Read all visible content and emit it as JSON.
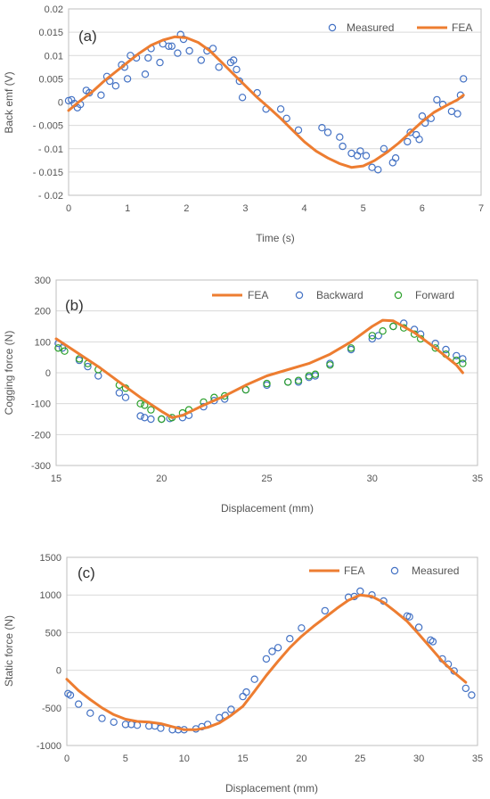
{
  "chart_data": [
    {
      "type": "scatter",
      "panel_label": "(a)",
      "xlabel": "Time (s)",
      "ylabel": "Back emf (V)",
      "xlim": [
        0,
        7
      ],
      "ylim": [
        -0.02,
        0.02
      ],
      "xticks": [
        0,
        1,
        2,
        3,
        4,
        5,
        6,
        7
      ],
      "yticks": [
        -0.02,
        -0.015,
        -0.01,
        -0.005,
        0,
        0.005,
        0.01,
        0.015,
        0.02
      ],
      "ytick_labels": [
        "- 0.02",
        "- 0.015",
        "- 0.01",
        "- 0.005",
        "0",
        "0.005",
        "0.01",
        "0.015",
        "0.02"
      ],
      "grid": "horizontal",
      "legend_position": "top-right",
      "series": [
        {
          "name": "Measured",
          "kind": "markers",
          "color": "#4472c4",
          "x": [
            0,
            0.05,
            0.1,
            0.15,
            0.2,
            0.3,
            0.35,
            0.55,
            0.65,
            0.7,
            0.8,
            0.9,
            0.95,
            1.0,
            1.05,
            1.15,
            1.3,
            1.35,
            1.4,
            1.55,
            1.6,
            1.7,
            1.75,
            1.85,
            1.9,
            1.95,
            2.05,
            2.25,
            2.35,
            2.45,
            2.55,
            2.75,
            2.8,
            2.85,
            2.9,
            2.95,
            3.2,
            3.35,
            3.6,
            3.7,
            3.9,
            4.3,
            4.4,
            4.6,
            4.65,
            4.8,
            4.9,
            4.95,
            5.05,
            5.15,
            5.25,
            5.35,
            5.5,
            5.55,
            5.75,
            5.8,
            5.9,
            5.95,
            6.0,
            6.05,
            6.15,
            6.25,
            6.35,
            6.5,
            6.6,
            6.65,
            6.7
          ],
          "y": [
            0.0003,
            0.0005,
            -0.0003,
            -0.0012,
            -0.0005,
            0.0025,
            0.002,
            0.0015,
            0.0055,
            0.0045,
            0.0035,
            0.008,
            0.0075,
            0.005,
            0.01,
            0.0095,
            0.006,
            0.0095,
            0.0115,
            0.0085,
            0.0125,
            0.012,
            0.012,
            0.0105,
            0.0145,
            0.0135,
            0.011,
            0.009,
            0.011,
            0.0115,
            0.0075,
            0.0085,
            0.009,
            0.007,
            0.0045,
            0.001,
            0.002,
            -0.0015,
            -0.0015,
            -0.0035,
            -0.006,
            -0.0055,
            -0.0065,
            -0.0075,
            -0.0095,
            -0.011,
            -0.0115,
            -0.0105,
            -0.0115,
            -0.014,
            -0.0145,
            -0.01,
            -0.013,
            -0.012,
            -0.0085,
            -0.0065,
            -0.007,
            -0.008,
            -0.003,
            -0.0045,
            -0.0035,
            0.0005,
            -0.0005,
            -0.002,
            -0.0025,
            0.0015,
            0.005
          ]
        },
        {
          "name": "FEA",
          "kind": "line",
          "color": "#ed7d31",
          "x": [
            0,
            0.2,
            0.4,
            0.6,
            0.8,
            1.0,
            1.2,
            1.4,
            1.6,
            1.8,
            2.0,
            2.2,
            2.4,
            2.6,
            2.8,
            3.0,
            3.2,
            3.4,
            3.6,
            3.8,
            4.0,
            4.2,
            4.4,
            4.6,
            4.8,
            5.0,
            5.2,
            5.4,
            5.6,
            5.8,
            6.0,
            6.2,
            6.4,
            6.6,
            6.7
          ],
          "y": [
            -0.0018,
            0.0003,
            0.0022,
            0.0045,
            0.0065,
            0.0085,
            0.0105,
            0.0122,
            0.0133,
            0.014,
            0.0138,
            0.0128,
            0.011,
            0.0085,
            0.006,
            0.0035,
            0.001,
            -0.0012,
            -0.0035,
            -0.006,
            -0.0085,
            -0.0105,
            -0.012,
            -0.0132,
            -0.014,
            -0.0137,
            -0.0125,
            -0.0108,
            -0.0088,
            -0.0065,
            -0.0042,
            -0.0022,
            -0.0008,
            0.0005,
            0.0015
          ]
        }
      ]
    },
    {
      "type": "scatter",
      "panel_label": "(b)",
      "xlabel": "Displacement (mm)",
      "ylabel": "Cogging force (N)",
      "xlim": [
        15,
        35
      ],
      "ylim": [
        -300,
        300
      ],
      "xticks": [
        15,
        20,
        25,
        30,
        35
      ],
      "yticks": [
        -300,
        -200,
        -100,
        0,
        100,
        200,
        300
      ],
      "ytick_labels": [
        "-300",
        "-200",
        "-100",
        "0",
        "100",
        "200",
        "300"
      ],
      "grid": "horizontal",
      "legend_position": "top-right",
      "series": [
        {
          "name": "FEA",
          "kind": "line",
          "color": "#ed7d31",
          "x": [
            15,
            16,
            17,
            18,
            19,
            20,
            20.5,
            21,
            22,
            23,
            24,
            25,
            26,
            27,
            28,
            29,
            30,
            30.5,
            31,
            32,
            33,
            34,
            34.3
          ],
          "y": [
            110,
            65,
            20,
            -30,
            -80,
            -125,
            -145,
            -138,
            -105,
            -75,
            -40,
            -10,
            10,
            30,
            60,
            100,
            150,
            170,
            168,
            130,
            80,
            25,
            0
          ]
        },
        {
          "name": "Backward",
          "kind": "markers",
          "color": "#4472c4",
          "x": [
            15.1,
            15.3,
            16.1,
            16.5,
            17.0,
            18.0,
            18.3,
            19.0,
            19.2,
            19.5,
            20.0,
            20.4,
            21.0,
            21.3,
            22.0,
            22.5,
            23.0,
            24.0,
            25.0,
            26.0,
            26.5,
            27.0,
            27.3,
            28.0,
            29.0,
            30.0,
            30.3,
            31.0,
            31.5,
            32.0,
            32.3,
            33.0,
            33.5,
            34.0,
            34.3
          ],
          "y": [
            95,
            80,
            40,
            20,
            -10,
            -65,
            -80,
            -140,
            -145,
            -150,
            -150,
            -148,
            -145,
            -138,
            -110,
            -90,
            -85,
            -55,
            -40,
            -30,
            -30,
            -15,
            -10,
            30,
            75,
            110,
            120,
            150,
            160,
            140,
            125,
            95,
            75,
            55,
            45
          ]
        },
        {
          "name": "Forward",
          "kind": "markers",
          "color": "#2ca02c",
          "x": [
            15.1,
            15.4,
            16.1,
            16.5,
            17.0,
            18.0,
            18.3,
            19.0,
            19.2,
            19.5,
            20.0,
            20.5,
            21.0,
            21.3,
            22.0,
            22.5,
            23.0,
            24.0,
            25.0,
            26.0,
            26.5,
            27.0,
            27.3,
            28.0,
            29.0,
            30.0,
            30.5,
            31.0,
            31.5,
            32.0,
            32.3,
            33.0,
            33.5,
            34.0,
            34.3
          ],
          "y": [
            80,
            70,
            45,
            30,
            10,
            -40,
            -50,
            -100,
            -105,
            -120,
            -150,
            -145,
            -130,
            -120,
            -95,
            -80,
            -75,
            -55,
            -35,
            -30,
            -25,
            -10,
            -5,
            25,
            80,
            120,
            135,
            150,
            145,
            125,
            110,
            80,
            60,
            40,
            30
          ]
        }
      ]
    },
    {
      "type": "scatter",
      "panel_label": "(c)",
      "xlabel": "Displacement (mm)",
      "ylabel": "Static force (N)",
      "xlim": [
        0,
        35
      ],
      "ylim": [
        -1000,
        1500
      ],
      "xticks": [
        0,
        5,
        10,
        15,
        20,
        25,
        30,
        35
      ],
      "yticks": [
        -1000,
        -500,
        0,
        500,
        1000,
        1500
      ],
      "ytick_labels": [
        "-1000",
        "-500",
        "0",
        "500",
        "1000",
        "1500"
      ],
      "grid": "horizontal",
      "legend_position": "top-right",
      "series": [
        {
          "name": "FEA",
          "kind": "line",
          "color": "#ed7d31",
          "x": [
            0,
            1,
            2,
            3,
            4,
            5,
            6,
            7,
            8,
            9,
            10,
            11,
            12,
            13,
            14,
            15,
            16,
            17,
            18,
            19,
            20,
            21,
            22,
            23,
            24,
            25,
            26,
            27,
            28,
            29,
            30,
            31,
            32,
            33,
            34
          ],
          "y": [
            -120,
            -270,
            -390,
            -500,
            -590,
            -650,
            -680,
            -690,
            -710,
            -750,
            -790,
            -790,
            -760,
            -700,
            -600,
            -480,
            -280,
            -70,
            120,
            300,
            450,
            580,
            700,
            820,
            930,
            1000,
            980,
            900,
            780,
            650,
            480,
            300,
            120,
            -30,
            -160
          ]
        },
        {
          "name": "Measured",
          "kind": "markers",
          "color": "#4472c4",
          "x": [
            0.1,
            0.3,
            1.0,
            2.0,
            3.0,
            4.0,
            5.0,
            5.5,
            6.0,
            7.0,
            7.5,
            8.0,
            9.0,
            9.5,
            10.0,
            11.0,
            11.5,
            12.0,
            13.0,
            13.5,
            14.0,
            15.0,
            15.3,
            16.0,
            17.0,
            17.5,
            18.0,
            19.0,
            20.0,
            22.0,
            24.0,
            24.5,
            25.0,
            26.0,
            27.0,
            29.0,
            29.2,
            30.0,
            31.0,
            31.2,
            32.0,
            32.5,
            33.0,
            34.0,
            34.5
          ],
          "y": [
            -310,
            -330,
            -450,
            -570,
            -640,
            -690,
            -720,
            -720,
            -730,
            -740,
            -740,
            -770,
            -790,
            -790,
            -790,
            -780,
            -750,
            -720,
            -630,
            -600,
            -520,
            -350,
            -290,
            -120,
            150,
            250,
            300,
            420,
            560,
            790,
            970,
            980,
            1050,
            1000,
            920,
            720,
            710,
            570,
            400,
            380,
            150,
            80,
            -10,
            -240,
            -330
          ]
        }
      ]
    }
  ]
}
